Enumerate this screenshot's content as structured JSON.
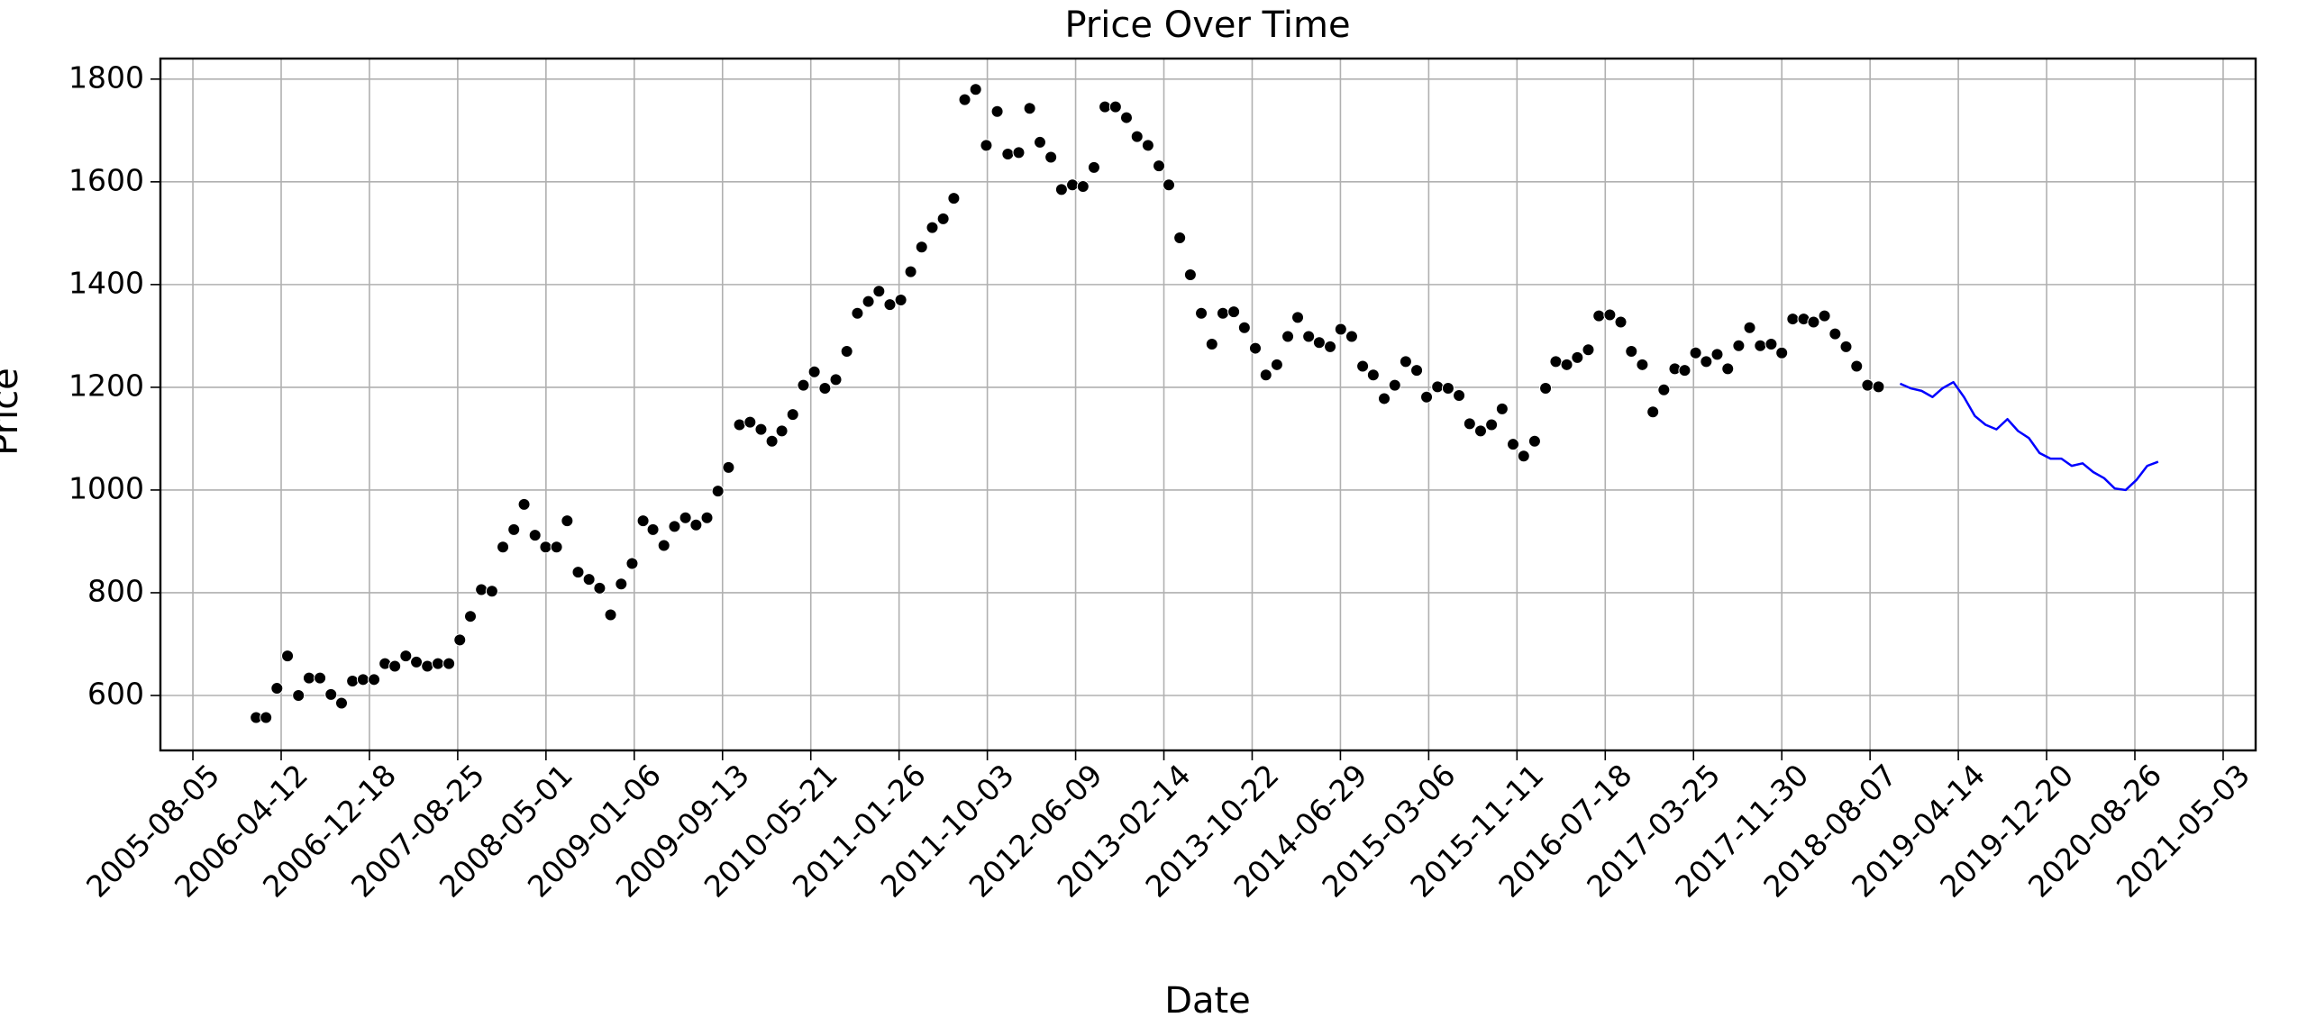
{
  "chart_data": {
    "type": "scatter",
    "title": "Price Over Time",
    "x_label": "Date",
    "y_label": "Price",
    "xlim": [
      "2005-05-05",
      "2021-08-03"
    ],
    "xticks": [
      "2005-08-05",
      "2006-04-12",
      "2006-12-18",
      "2007-08-25",
      "2008-05-01",
      "2009-01-06",
      "2009-09-13",
      "2010-05-21",
      "2011-01-26",
      "2011-10-03",
      "2012-06-09",
      "2013-02-14",
      "2013-10-22",
      "2014-06-29",
      "2015-03-06",
      "2015-11-11",
      "2016-07-18",
      "2017-03-25",
      "2017-11-30",
      "2018-08-07",
      "2019-04-14",
      "2019-12-20",
      "2020-08-26",
      "2021-05-03"
    ],
    "ylim": [
      493,
      1840
    ],
    "yticks": [
      600,
      800,
      1000,
      1200,
      1400,
      1600,
      1800
    ],
    "grid": true,
    "series": [
      {
        "type": "scatter",
        "color": "#000000",
        "x": [
          "2006-01-31",
          "2006-02-28",
          "2006-03-31",
          "2006-04-30",
          "2006-05-31",
          "2006-06-30",
          "2006-07-31",
          "2006-08-31",
          "2006-09-30",
          "2006-10-31",
          "2006-11-30",
          "2006-12-31",
          "2007-01-31",
          "2007-02-28",
          "2007-03-31",
          "2007-04-30",
          "2007-05-31",
          "2007-06-30",
          "2007-07-31",
          "2007-08-31",
          "2007-09-30",
          "2007-10-31",
          "2007-11-30",
          "2007-12-31",
          "2008-01-31",
          "2008-02-29",
          "2008-03-31",
          "2008-04-30",
          "2008-05-31",
          "2008-06-30",
          "2008-07-31",
          "2008-08-31",
          "2008-09-30",
          "2008-10-31",
          "2008-11-30",
          "2008-12-31",
          "2009-01-31",
          "2009-02-28",
          "2009-03-31",
          "2009-04-30",
          "2009-05-31",
          "2009-06-30",
          "2009-07-31",
          "2009-08-31",
          "2009-09-30",
          "2009-10-31",
          "2009-11-30",
          "2009-12-31",
          "2010-01-31",
          "2010-02-28",
          "2010-03-31",
          "2010-04-30",
          "2010-05-31",
          "2010-06-30",
          "2010-07-31",
          "2010-08-31",
          "2010-09-30",
          "2010-10-31",
          "2010-11-30",
          "2010-12-31",
          "2011-01-31",
          "2011-02-28",
          "2011-03-31",
          "2011-04-30",
          "2011-05-31",
          "2011-06-30",
          "2011-07-31",
          "2011-08-31",
          "2011-09-30",
          "2011-10-31",
          "2011-11-30",
          "2011-12-31",
          "2012-01-31",
          "2012-02-29",
          "2012-03-31",
          "2012-04-30",
          "2012-05-31",
          "2012-06-30",
          "2012-07-31",
          "2012-08-31",
          "2012-09-30",
          "2012-10-31",
          "2012-11-30",
          "2012-12-31",
          "2013-01-31",
          "2013-02-28",
          "2013-03-31",
          "2013-04-30",
          "2013-05-31",
          "2013-06-30",
          "2013-07-31",
          "2013-08-31",
          "2013-09-30",
          "2013-10-31",
          "2013-11-30",
          "2013-12-31",
          "2014-01-31",
          "2014-02-28",
          "2014-03-31",
          "2014-04-30",
          "2014-05-31",
          "2014-06-30",
          "2014-07-31",
          "2014-08-31",
          "2014-09-30",
          "2014-10-31",
          "2014-11-30",
          "2014-12-31",
          "2015-01-31",
          "2015-02-28",
          "2015-03-31",
          "2015-04-30",
          "2015-05-31",
          "2015-06-30",
          "2015-07-31",
          "2015-08-31",
          "2015-09-30",
          "2015-10-31",
          "2015-11-30",
          "2015-12-31",
          "2016-01-31",
          "2016-02-29",
          "2016-03-31",
          "2016-04-30",
          "2016-05-31",
          "2016-06-30",
          "2016-07-31",
          "2016-08-31",
          "2016-09-30",
          "2016-10-31",
          "2016-11-30",
          "2016-12-31",
          "2017-01-31",
          "2017-02-28",
          "2017-03-31",
          "2017-04-30",
          "2017-05-31",
          "2017-06-30",
          "2017-07-31",
          "2017-08-31",
          "2017-09-30",
          "2017-10-31",
          "2017-11-30",
          "2017-12-31",
          "2018-01-31",
          "2018-02-28",
          "2018-03-31",
          "2018-04-30",
          "2018-05-31",
          "2018-06-30",
          "2018-07-31",
          "2018-08-31"
        ],
        "values": [
          557,
          557,
          614,
          677,
          600,
          634,
          634,
          602,
          585,
          628,
          631,
          631,
          662,
          657,
          677,
          665,
          657,
          662,
          662,
          708,
          754,
          806,
          803,
          889,
          923,
          972,
          912,
          889,
          889,
          940,
          840,
          826,
          809,
          757,
          817,
          857,
          940,
          923,
          892,
          929,
          946,
          932,
          946,
          998,
          1044,
          1127,
          1132,
          1118,
          1095,
          1115,
          1147,
          1204,
          1230,
          1198,
          1215,
          1270,
          1344,
          1367,
          1387,
          1361,
          1370,
          1425,
          1473,
          1511,
          1528,
          1568,
          1760,
          1780,
          1671,
          1737,
          1654,
          1657,
          1743,
          1677,
          1648,
          1585,
          1594,
          1591,
          1628,
          1746,
          1746,
          1725,
          1688,
          1671,
          1631,
          1594,
          1491,
          1419,
          1344,
          1284,
          1344,
          1347,
          1316,
          1276,
          1224,
          1244,
          1299,
          1336,
          1299,
          1287,
          1279,
          1313,
          1299,
          1241,
          1224,
          1178,
          1204,
          1250,
          1233,
          1181,
          1201,
          1198,
          1184,
          1129,
          1115,
          1127,
          1158,
          1089,
          1066,
          1095,
          1198,
          1250,
          1244,
          1258,
          1273,
          1339,
          1341,
          1327,
          1270,
          1244,
          1152,
          1195,
          1236,
          1233,
          1267,
          1250,
          1264,
          1236,
          1281,
          1316,
          1281,
          1284,
          1267,
          1333,
          1333,
          1327,
          1339,
          1304,
          1279,
          1241,
          1204,
          1201
        ]
      },
      {
        "type": "line",
        "color": "#0000ff",
        "x": [
          "2018-10-31",
          "2018-11-30",
          "2018-12-31",
          "2019-01-31",
          "2019-02-28",
          "2019-03-31",
          "2019-04-30",
          "2019-05-31",
          "2019-06-30",
          "2019-07-31",
          "2019-08-31",
          "2019-09-30",
          "2019-10-31",
          "2019-11-30",
          "2019-12-31",
          "2020-01-31",
          "2020-02-29",
          "2020-03-31",
          "2020-04-30",
          "2020-05-31",
          "2020-06-30",
          "2020-07-31",
          "2020-08-31",
          "2020-09-30",
          "2020-10-31"
        ],
        "values": [
          1207,
          1198,
          1193,
          1181,
          1198,
          1210,
          1181,
          1144,
          1127,
          1118,
          1138,
          1115,
          1101,
          1072,
          1061,
          1061,
          1047,
          1052,
          1035,
          1023,
          1003,
          1000,
          1020,
          1047,
          1055
        ]
      }
    ]
  }
}
